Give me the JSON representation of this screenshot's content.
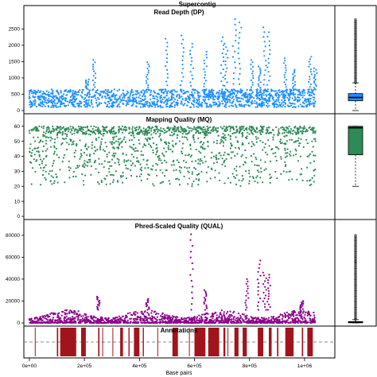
{
  "figure": {
    "title": "Supercontig"
  },
  "chart_data": [
    {
      "type": "scatter",
      "title": "Read Depth (DP)",
      "color": "#1e90ff",
      "yticks": [
        0,
        500,
        1000,
        1500,
        2000,
        2500
      ],
      "ylim": [
        0,
        2900
      ],
      "typical_range": [
        100,
        650
      ],
      "spikes": [
        [
          210000,
          950
        ],
        [
          235000,
          1550
        ],
        [
          430000,
          1480
        ],
        [
          500000,
          2200
        ],
        [
          555000,
          2300
        ],
        [
          590000,
          2050
        ],
        [
          640000,
          1800
        ],
        [
          700000,
          2250
        ],
        [
          715000,
          2050
        ],
        [
          745000,
          2800
        ],
        [
          765000,
          2700
        ],
        [
          810000,
          1550
        ],
        [
          835000,
          1350
        ],
        [
          855000,
          2550
        ],
        [
          870000,
          2400
        ],
        [
          930000,
          1600
        ],
        [
          960000,
          1250
        ],
        [
          1020000,
          1650
        ],
        [
          1040000,
          1300
        ]
      ],
      "boxplot": {
        "min": 0,
        "q1": 300,
        "median": 400,
        "q3": 520,
        "max": 850,
        "outliers_to": 2800
      }
    },
    {
      "type": "scatter",
      "title": "Mapping Quality (MQ)",
      "color": "#2e8b57",
      "yticks": [
        0,
        10,
        20,
        30,
        40,
        50,
        60
      ],
      "ylim": [
        0,
        62
      ],
      "typical_range": [
        20,
        60
      ],
      "boxplot": {
        "min": 20,
        "q1": 41,
        "median": 59,
        "q3": 60,
        "max": 60
      }
    },
    {
      "type": "scatter",
      "title": "Phred-Scaled Quality (QUAL)",
      "color": "#8b008b",
      "yticks": [
        0,
        20000,
        40000,
        60000,
        80000
      ],
      "ylim": [
        0,
        85000
      ],
      "typical_range": [
        0,
        12000
      ],
      "spikes": [
        [
          250000,
          24000
        ],
        [
          430000,
          22000
        ],
        [
          590000,
          81000
        ],
        [
          640000,
          30000
        ],
        [
          790000,
          40000
        ],
        [
          835000,
          57000
        ],
        [
          855000,
          46000
        ],
        [
          870000,
          44000
        ],
        [
          990000,
          20000
        ]
      ],
      "boxplot": {
        "min": 0,
        "q1": 200,
        "median": 500,
        "q3": 1200,
        "max": 3000,
        "outliers_to": 80000
      }
    },
    {
      "type": "bar",
      "title": "Annotations",
      "color": "#a0151c",
      "intervals": [
        [
          20000,
          22000
        ],
        [
          100000,
          105000
        ],
        [
          112000,
          170000
        ],
        [
          188000,
          205000
        ],
        [
          250000,
          255000
        ],
        [
          265000,
          267000
        ],
        [
          302000,
          304000
        ],
        [
          330000,
          340000
        ],
        [
          360000,
          364000
        ],
        [
          380000,
          400000
        ],
        [
          412000,
          416000
        ],
        [
          465000,
          467000
        ],
        [
          520000,
          540000
        ],
        [
          580000,
          582000
        ],
        [
          600000,
          640000
        ],
        [
          650000,
          690000
        ],
        [
          705000,
          712000
        ],
        [
          720000,
          723000
        ],
        [
          745000,
          760000
        ],
        [
          775000,
          790000
        ],
        [
          830000,
          850000
        ],
        [
          870000,
          880000
        ],
        [
          900000,
          905000
        ],
        [
          930000,
          960000
        ],
        [
          990000,
          995000
        ],
        [
          1010000,
          1030000
        ]
      ]
    }
  ],
  "x_axis": {
    "label": "Base pairs",
    "range": [
      -20000,
      1110000
    ],
    "ticks": [
      {
        "value": 0,
        "label": "0e+00"
      },
      {
        "value": 200000,
        "label": "2e+05"
      },
      {
        "value": 400000,
        "label": "4e+05"
      },
      {
        "value": 600000,
        "label": "6e+05"
      },
      {
        "value": 800000,
        "label": "8e+05"
      },
      {
        "value": 1000000,
        "label": "1e+06"
      }
    ]
  }
}
